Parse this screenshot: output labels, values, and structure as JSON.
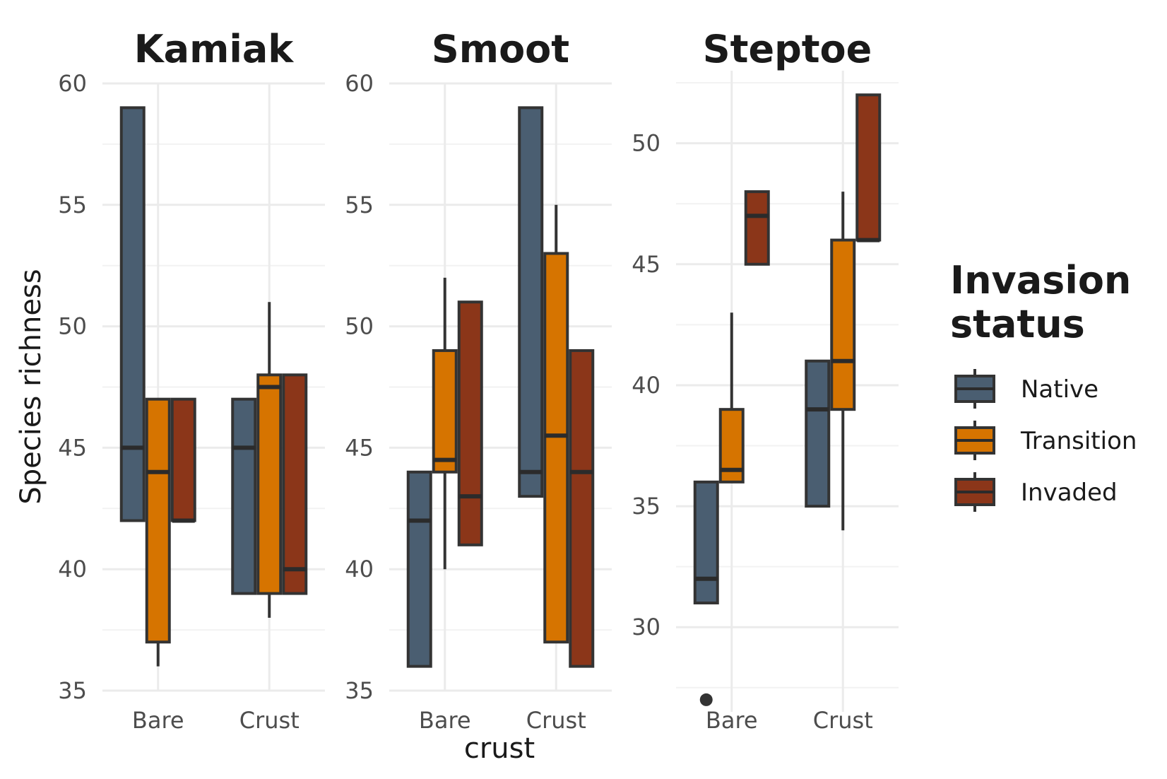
{
  "chart_data": {
    "type": "box",
    "facets": [
      {
        "title": "Kamiak",
        "ylim": [
          35,
          60
        ],
        "yticks": [
          35,
          40,
          45,
          50,
          55,
          60
        ],
        "categories": [
          "Bare",
          "Crust"
        ],
        "boxes": [
          {
            "category": "Bare",
            "group": "Native",
            "lower_whisker": 42,
            "q1": 42,
            "median": 45,
            "q3": 59,
            "upper_whisker": 59,
            "outliers": []
          },
          {
            "category": "Bare",
            "group": "Transition",
            "lower_whisker": 36,
            "q1": 37,
            "median": 44,
            "q3": 47,
            "upper_whisker": 47,
            "outliers": []
          },
          {
            "category": "Bare",
            "group": "Invaded",
            "lower_whisker": 42,
            "q1": 42,
            "median": 42,
            "q3": 47,
            "upper_whisker": 47,
            "outliers": []
          },
          {
            "category": "Crust",
            "group": "Native",
            "lower_whisker": 39,
            "q1": 39,
            "median": 45,
            "q3": 47,
            "upper_whisker": 47,
            "outliers": []
          },
          {
            "category": "Crust",
            "group": "Transition",
            "lower_whisker": 38,
            "q1": 39,
            "median": 47.5,
            "q3": 48,
            "upper_whisker": 51,
            "outliers": []
          },
          {
            "category": "Crust",
            "group": "Invaded",
            "lower_whisker": 39,
            "q1": 39,
            "median": 40,
            "q3": 48,
            "upper_whisker": 48,
            "outliers": []
          }
        ]
      },
      {
        "title": "Smoot",
        "ylim": [
          35,
          60
        ],
        "yticks": [
          35,
          40,
          45,
          50,
          55,
          60
        ],
        "categories": [
          "Bare",
          "Crust"
        ],
        "boxes": [
          {
            "category": "Bare",
            "group": "Native",
            "lower_whisker": 36,
            "q1": 36,
            "median": 42,
            "q3": 44,
            "upper_whisker": 44,
            "outliers": []
          },
          {
            "category": "Bare",
            "group": "Transition",
            "lower_whisker": 40,
            "q1": 44,
            "median": 44.5,
            "q3": 49,
            "upper_whisker": 52,
            "outliers": []
          },
          {
            "category": "Bare",
            "group": "Invaded",
            "lower_whisker": 41,
            "q1": 41,
            "median": 43,
            "q3": 51,
            "upper_whisker": 51,
            "outliers": []
          },
          {
            "category": "Crust",
            "group": "Native",
            "lower_whisker": 43,
            "q1": 43,
            "median": 44,
            "q3": 59,
            "upper_whisker": 59,
            "outliers": []
          },
          {
            "category": "Crust",
            "group": "Transition",
            "lower_whisker": 37,
            "q1": 37,
            "median": 45.5,
            "q3": 53,
            "upper_whisker": 55,
            "outliers": []
          },
          {
            "category": "Crust",
            "group": "Invaded",
            "lower_whisker": 36,
            "q1": 36,
            "median": 44,
            "q3": 49,
            "upper_whisker": 49,
            "outliers": []
          }
        ]
      },
      {
        "title": "Steptoe",
        "ylim": [
          26,
          53
        ],
        "yticks": [
          30,
          35,
          40,
          45,
          50
        ],
        "categories": [
          "Bare",
          "Crust"
        ],
        "boxes": [
          {
            "category": "Bare",
            "group": "Native",
            "lower_whisker": 31,
            "q1": 31,
            "median": 32,
            "q3": 36,
            "upper_whisker": 36,
            "outliers": [
              27
            ]
          },
          {
            "category": "Bare",
            "group": "Transition",
            "lower_whisker": 36,
            "q1": 36,
            "median": 36.5,
            "q3": 39,
            "upper_whisker": 43,
            "outliers": []
          },
          {
            "category": "Bare",
            "group": "Invaded",
            "lower_whisker": 45,
            "q1": 45,
            "median": 47,
            "q3": 48,
            "upper_whisker": 48,
            "outliers": []
          },
          {
            "category": "Crust",
            "group": "Native",
            "lower_whisker": 35,
            "q1": 35,
            "median": 39,
            "q3": 41,
            "upper_whisker": 41,
            "outliers": []
          },
          {
            "category": "Crust",
            "group": "Transition",
            "lower_whisker": 34,
            "q1": 39,
            "median": 41,
            "q3": 46,
            "upper_whisker": 48,
            "outliers": []
          },
          {
            "category": "Crust",
            "group": "Invaded",
            "lower_whisker": 46,
            "q1": 46,
            "median": 46,
            "q3": 52,
            "upper_whisker": 52,
            "outliers": []
          }
        ]
      }
    ],
    "xlabel": "crust",
    "ylabel": "Species richness",
    "legend": {
      "title": "Invasion\nstatus",
      "position": "right",
      "entries": [
        {
          "name": "Native",
          "color": "#4a5e71"
        },
        {
          "name": "Transition",
          "color": "#d67400"
        },
        {
          "name": "Invaded",
          "color": "#8b3619"
        }
      ]
    },
    "grid": true
  }
}
